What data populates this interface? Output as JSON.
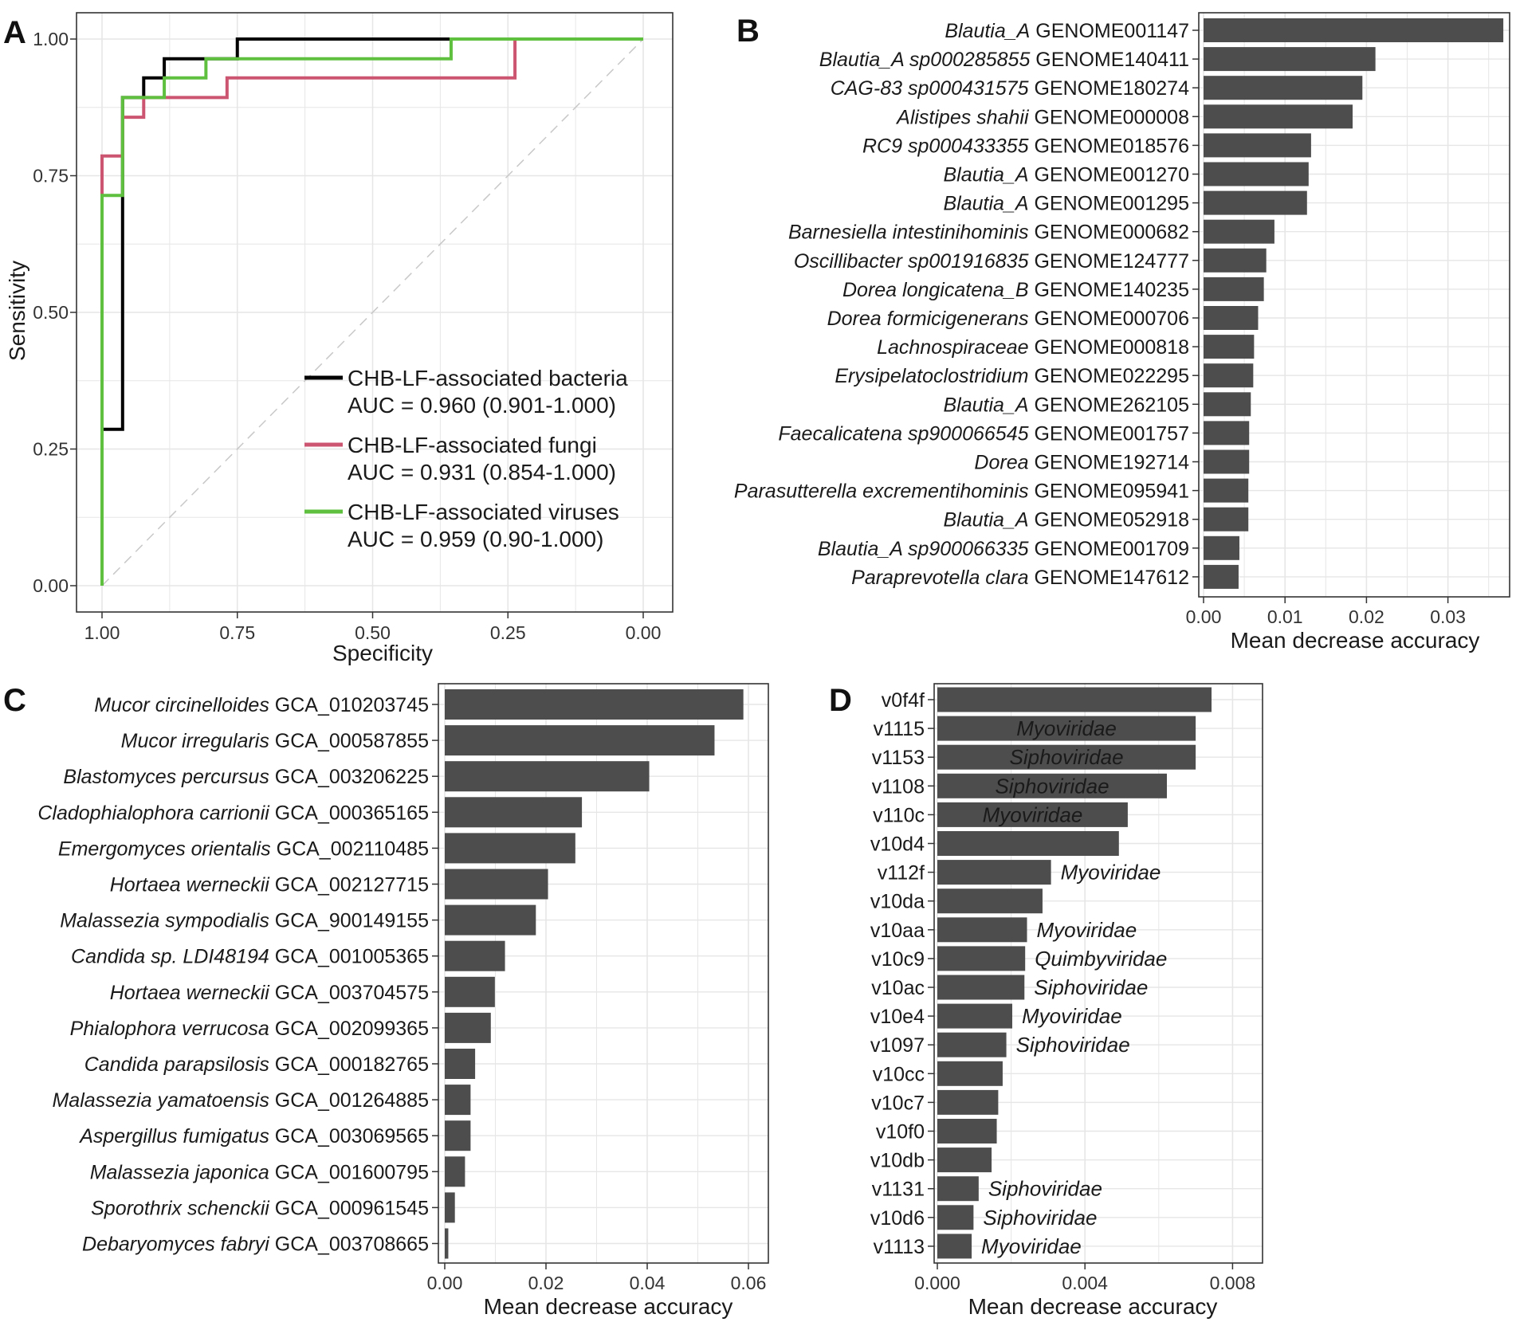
{
  "colors": {
    "bar": "#4d4d4d",
    "grid": "#e6e6e6",
    "panel_border": "#333333",
    "bacteria": "#000000",
    "fungi": "#cc5571",
    "viruses": "#5fbf3f",
    "diagonal": "#c8c8c8"
  },
  "chart_data": [
    {
      "panel": "A",
      "type": "line",
      "subtype": "roc",
      "xlabel": "Specificity",
      "ylabel": "Sensitivity",
      "x_reversed": true,
      "xlim": [
        0,
        1
      ],
      "ylim": [
        0,
        1
      ],
      "x_ticks": [
        1.0,
        0.75,
        0.5,
        0.25,
        0.0
      ],
      "x_tick_labels": [
        "1.00",
        "0.75",
        "0.50",
        "0.25",
        "0.00"
      ],
      "y_ticks": [
        0.0,
        0.25,
        0.5,
        0.75,
        1.0
      ],
      "y_tick_labels": [
        "0.00",
        "0.25",
        "0.50",
        "0.75",
        "1.00"
      ],
      "grid": true,
      "series": [
        {
          "key": "bacteria",
          "name": "CHB-LF-associated bacteria",
          "auc_text": "AUC = 0.960 (0.901-1.000)",
          "color_key": "bacteria",
          "points": [
            [
              1.0,
              0.0
            ],
            [
              1.0,
              0.286
            ],
            [
              0.962,
              0.286
            ],
            [
              0.962,
              0.893
            ],
            [
              0.923,
              0.893
            ],
            [
              0.923,
              0.929
            ],
            [
              0.885,
              0.929
            ],
            [
              0.885,
              0.964
            ],
            [
              0.75,
              0.964
            ],
            [
              0.75,
              1.0
            ],
            [
              0.0,
              1.0
            ]
          ]
        },
        {
          "key": "fungi",
          "name": "CHB-LF-associated fungi",
          "auc_text": "AUC = 0.931 (0.854-1.000)",
          "color_key": "fungi",
          "points": [
            [
              1.0,
              0.0
            ],
            [
              1.0,
              0.786
            ],
            [
              0.962,
              0.786
            ],
            [
              0.962,
              0.857
            ],
            [
              0.923,
              0.857
            ],
            [
              0.923,
              0.893
            ],
            [
              0.769,
              0.893
            ],
            [
              0.769,
              0.929
            ],
            [
              0.237,
              0.929
            ],
            [
              0.237,
              1.0
            ],
            [
              0.0,
              1.0
            ]
          ]
        },
        {
          "key": "viruses",
          "name": "CHB-LF-associated viruses",
          "auc_text": "AUC = 0.959 (0.90-1.000)",
          "color_key": "viruses",
          "points": [
            [
              1.0,
              0.0
            ],
            [
              1.0,
              0.714
            ],
            [
              0.962,
              0.714
            ],
            [
              0.962,
              0.893
            ],
            [
              0.885,
              0.893
            ],
            [
              0.885,
              0.929
            ],
            [
              0.808,
              0.929
            ],
            [
              0.808,
              0.964
            ],
            [
              0.355,
              0.964
            ],
            [
              0.355,
              1.0
            ],
            [
              0.0,
              1.0
            ]
          ]
        }
      ]
    },
    {
      "panel": "B",
      "type": "bar",
      "orientation": "horizontal",
      "xlabel": "Mean decrease accuracy",
      "xlim": [
        0,
        0.0375
      ],
      "x_ticks": [
        0,
        0.01,
        0.02,
        0.03
      ],
      "x_tick_labels": [
        "0.00",
        "0.01",
        "0.02",
        "0.03"
      ],
      "grid": true,
      "categories": [
        {
          "italic": "Blautia_A",
          "plain": "GENOME001147"
        },
        {
          "italic": "Blautia_A sp000285855",
          "plain": "GENOME140411"
        },
        {
          "italic": "CAG-83 sp000431575",
          "plain": "GENOME180274"
        },
        {
          "italic": "Alistipes shahii",
          "plain": "GENOME000008"
        },
        {
          "italic": "RC9 sp000433355",
          "plain": "GENOME018576"
        },
        {
          "italic": "Blautia_A",
          "plain": "GENOME001270"
        },
        {
          "italic": "Blautia_A",
          "plain": "GENOME001295"
        },
        {
          "italic": "Barnesiella intestinihominis",
          "plain": "GENOME000682"
        },
        {
          "italic": "Oscillibacter sp001916835",
          "plain": "GENOME124777"
        },
        {
          "italic": "Dorea longicatena_B",
          "plain": "GENOME140235"
        },
        {
          "italic": "Dorea formicigenerans",
          "plain": "GENOME000706"
        },
        {
          "italic": "Lachnospiraceae",
          "plain": "GENOME000818"
        },
        {
          "italic": "Erysipelatoclostridium",
          "plain": "GENOME022295"
        },
        {
          "italic": "Blautia_A",
          "plain": "GENOME262105"
        },
        {
          "italic": "Faecalicatena sp900066545",
          "plain": "GENOME001757"
        },
        {
          "italic": "Dorea",
          "plain": "GENOME192714"
        },
        {
          "italic": "Parasutterella excrementihominis",
          "plain": "GENOME095941"
        },
        {
          "italic": "Blautia_A",
          "plain": "GENOME052918"
        },
        {
          "italic": "Blautia_A sp900066335",
          "plain": "GENOME001709"
        },
        {
          "italic": "Paraprevotella clara",
          "plain": "GENOME147612"
        }
      ],
      "values": [
        0.0368,
        0.0211,
        0.0195,
        0.0183,
        0.0132,
        0.0129,
        0.0127,
        0.0087,
        0.0077,
        0.0074,
        0.0067,
        0.0062,
        0.0061,
        0.0058,
        0.0056,
        0.0056,
        0.0055,
        0.0055,
        0.0044,
        0.0043
      ]
    },
    {
      "panel": "C",
      "type": "bar",
      "orientation": "horizontal",
      "xlabel": "Mean decrease accuracy",
      "xlim": [
        -0.001,
        0.0615
      ],
      "x_ticks": [
        0,
        0.02,
        0.04,
        0.06
      ],
      "x_tick_labels": [
        "0.00",
        "0.02",
        "0.04",
        "0.06"
      ],
      "grid": true,
      "categories": [
        {
          "italic": "Mucor circinelloides",
          "plain": "GCA_010203745"
        },
        {
          "italic": "Mucor irregularis",
          "plain": "GCA_000587855"
        },
        {
          "italic": "Blastomyces percursus",
          "plain": "GCA_003206225"
        },
        {
          "italic": "Cladophialophora carrionii",
          "plain": "GCA_000365165"
        },
        {
          "italic": "Emergomyces orientalis",
          "plain": "GCA_002110485"
        },
        {
          "italic": "Hortaea werneckii",
          "plain": "GCA_002127715"
        },
        {
          "italic": "Malassezia sympodialis",
          "plain": "GCA_900149155"
        },
        {
          "italic": "Candida sp. LDI48194",
          "plain": "GCA_001005365"
        },
        {
          "italic": "Hortaea werneckii",
          "plain": "GCA_003704575"
        },
        {
          "italic": "Phialophora verrucosa",
          "plain": "GCA_002099365"
        },
        {
          "italic": "Candida parapsilosis",
          "plain": "GCA_000182765"
        },
        {
          "italic": "Malassezia yamatoensis",
          "plain": "GCA_001264885"
        },
        {
          "italic": "Aspergillus fumigatus",
          "plain": "GCA_003069565"
        },
        {
          "italic": "Malassezia japonica",
          "plain": "GCA_001600795"
        },
        {
          "italic": "Sporothrix schenckii",
          "plain": "GCA_000961545"
        },
        {
          "italic": "Debaryomyces fabryi",
          "plain": "GCA_003708665"
        }
      ],
      "values": [
        0.059,
        0.0533,
        0.0404,
        0.0271,
        0.0258,
        0.0204,
        0.018,
        0.0119,
        0.0099,
        0.0091,
        0.006,
        0.0051,
        0.0051,
        0.004,
        0.002,
        0.0007
      ]
    },
    {
      "panel": "D",
      "type": "bar",
      "orientation": "horizontal",
      "xlabel": "Mean decrease accuracy",
      "xlim": [
        -0.0001,
        0.0086
      ],
      "x_ticks": [
        0,
        0.004,
        0.008
      ],
      "x_tick_labels": [
        "0.000",
        "0.004",
        "0.008"
      ],
      "grid": true,
      "categories": [
        "v0f4f",
        "v1115",
        "v1153",
        "v1108",
        "v110c",
        "v10d4",
        "v112f",
        "v10da",
        "v10aa",
        "v10c9",
        "v10ac",
        "v10e4",
        "v1097",
        "v10cc",
        "v10c7",
        "v10f0",
        "v10db",
        "v1131",
        "v10d6",
        "v1113"
      ],
      "values": [
        0.00743,
        0.007,
        0.007,
        0.00622,
        0.00516,
        0.00492,
        0.00308,
        0.00285,
        0.00243,
        0.00238,
        0.00236,
        0.00203,
        0.00187,
        0.00177,
        0.00165,
        0.00161,
        0.00147,
        0.00112,
        0.00098,
        0.00093
      ],
      "annotations": [
        "",
        "Myoviridae",
        "Siphoviridae",
        "Siphoviridae",
        "Myoviridae",
        "",
        "Myoviridae",
        "",
        "Myoviridae",
        "Quimbyviridae",
        "Siphoviridae",
        "Myoviridae",
        "Siphoviridae",
        "",
        "",
        "",
        "",
        "Siphoviridae",
        "Siphoviridae",
        "Myoviridae"
      ],
      "annotation_inside": [
        false,
        true,
        true,
        true,
        true,
        false,
        false,
        false,
        false,
        false,
        false,
        false,
        false,
        false,
        false,
        false,
        false,
        false,
        false,
        false
      ]
    }
  ]
}
